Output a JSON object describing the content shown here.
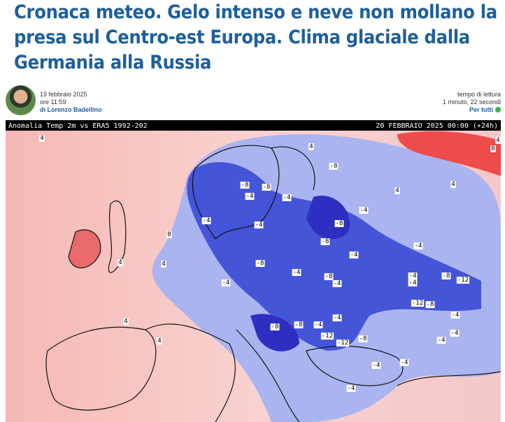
{
  "header": {
    "title": "Cronaca meteo. Gelo intenso e neve non mollano la presa sul Centro-est Europa. Clima glaciale dalla Germania alla Russia"
  },
  "meta": {
    "date": "19 febbraio 2025",
    "time": "ore 11:59",
    "author": "di Lorenzo Badellino",
    "reading_label": "tempo di lettura",
    "reading_time": "1 minuto, 22 secondi",
    "audience": "Per tutti"
  },
  "map": {
    "title_left": "Anomalia Temp 2m vs ERA5 1992-202",
    "title_right": "20 FEBBRAIO 2025 00:00 (+24h)",
    "labels": [
      "4",
      "8",
      "4",
      "4",
      "-8",
      "-4",
      "-8",
      "-4",
      "-8",
      "-4",
      "-8",
      "-4",
      "-4",
      "-8",
      "-8",
      "-4",
      "-8",
      "-4",
      "-4",
      "-4",
      "-4",
      "-8",
      "-12",
      "-4",
      "-4",
      "-12",
      "-8",
      "-4",
      "-4",
      "-8",
      "-8",
      "-4",
      "-12",
      "-12",
      "-8",
      "-4",
      "-4",
      "-4",
      "-4",
      "-4",
      "4",
      "4",
      "4",
      "4",
      "0",
      "4",
      "4"
    ]
  }
}
